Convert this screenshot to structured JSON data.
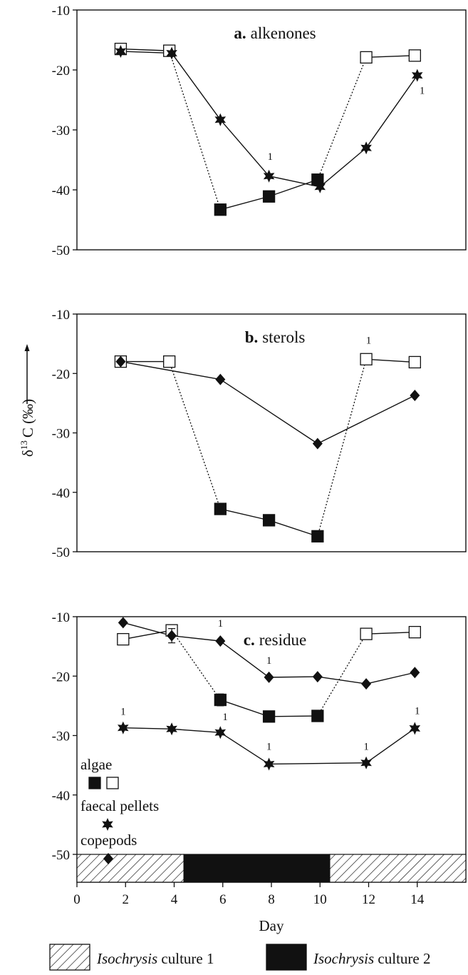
{
  "ylabel": {
    "prefix": "δ",
    "superscript": "13",
    "main": "C (‰)"
  },
  "xlabel": "Day",
  "bottom_legend": [
    {
      "pattern": "hatched",
      "italic": "Isochrysis",
      "rest": " culture 1"
    },
    {
      "pattern": "solid",
      "italic": "Isochrysis",
      "rest": " culture 2"
    }
  ],
  "inset_legend": [
    {
      "symbol": "squares",
      "label": "algae"
    },
    {
      "symbol": "star",
      "label": "faecal pellets"
    },
    {
      "symbol": "diamond",
      "label": "copepods"
    }
  ],
  "chart_data": [
    {
      "type": "line",
      "panel_letter": "a.",
      "panel_title": "alkenones",
      "xlim": [
        0,
        16
      ],
      "ylim": [
        -50,
        -10
      ],
      "y_ticks": [
        -10,
        -20,
        -30,
        -40,
        -50
      ],
      "series": [
        {
          "name": "algae",
          "marker": "square",
          "points": [
            {
              "x": 1.8,
              "y": -16.5,
              "fill": "open"
            },
            {
              "x": 3.8,
              "y": -16.8,
              "fill": "open"
            },
            {
              "x": 5.9,
              "y": -43.3,
              "fill": "filled"
            },
            {
              "x": 7.9,
              "y": -41.1,
              "fill": "filled"
            },
            {
              "x": 9.9,
              "y": -38.3,
              "fill": "filled"
            },
            {
              "x": 11.9,
              "y": -17.9,
              "fill": "open"
            },
            {
              "x": 13.9,
              "y": -17.6,
              "fill": "open"
            }
          ],
          "links": [
            {
              "from": 0,
              "to": 1,
              "style": "solid"
            },
            {
              "from": 1,
              "to": 2,
              "style": "dotted"
            },
            {
              "from": 2,
              "to": 3,
              "style": "solid"
            },
            {
              "from": 3,
              "to": 4,
              "style": "solid"
            },
            {
              "from": 4,
              "to": 5,
              "style": "dotted"
            },
            {
              "from": 5,
              "to": 6,
              "style": "solid"
            }
          ]
        },
        {
          "name": "faecal pellets",
          "marker": "star",
          "points": [
            {
              "x": 1.8,
              "y": -16.9
            },
            {
              "x": 3.9,
              "y": -17.2
            },
            {
              "x": 5.9,
              "y": -28.3
            },
            {
              "x": 7.9,
              "y": -37.7
            },
            {
              "x": 10.0,
              "y": -39.5
            },
            {
              "x": 11.9,
              "y": -33.0
            },
            {
              "x": 14.0,
              "y": -20.9
            }
          ],
          "links": [
            {
              "from": 0,
              "to": 1,
              "style": "solid"
            },
            {
              "from": 1,
              "to": 2,
              "style": "solid"
            },
            {
              "from": 2,
              "to": 3,
              "style": "solid"
            },
            {
              "from": 3,
              "to": 4,
              "style": "solid"
            },
            {
              "from": 4,
              "to": 5,
              "style": "solid"
            },
            {
              "from": 5,
              "to": 6,
              "style": "solid"
            }
          ]
        }
      ],
      "annotations": [
        {
          "text": "1",
          "x": 7.95,
          "y": -35.0
        },
        {
          "text": "1",
          "x": 14.2,
          "y": -24.0
        }
      ]
    },
    {
      "type": "line",
      "panel_letter": "b.",
      "panel_title": "sterols",
      "xlim": [
        0,
        16
      ],
      "ylim": [
        -50,
        -10
      ],
      "y_ticks": [
        -10,
        -20,
        -30,
        -40,
        -50
      ],
      "series": [
        {
          "name": "algae",
          "marker": "square",
          "points": [
            {
              "x": 1.8,
              "y": -18.0,
              "fill": "open"
            },
            {
              "x": 3.8,
              "y": -18.0,
              "fill": "open"
            },
            {
              "x": 5.9,
              "y": -42.8,
              "fill": "filled"
            },
            {
              "x": 7.9,
              "y": -44.7,
              "fill": "filled"
            },
            {
              "x": 9.9,
              "y": -47.4,
              "fill": "filled"
            },
            {
              "x": 11.9,
              "y": -17.6,
              "fill": "open"
            },
            {
              "x": 13.9,
              "y": -18.1,
              "fill": "open"
            }
          ],
          "links": [
            {
              "from": 0,
              "to": 1,
              "style": "solid"
            },
            {
              "from": 1,
              "to": 2,
              "style": "dotted"
            },
            {
              "from": 2,
              "to": 3,
              "style": "solid"
            },
            {
              "from": 3,
              "to": 4,
              "style": "solid"
            },
            {
              "from": 4,
              "to": 5,
              "style": "dotted"
            },
            {
              "from": 5,
              "to": 6,
              "style": "solid"
            }
          ]
        },
        {
          "name": "copepods",
          "marker": "diamond",
          "points": [
            {
              "x": 1.8,
              "y": -18.0
            },
            {
              "x": 5.9,
              "y": -21.0
            },
            {
              "x": 9.9,
              "y": -31.8
            },
            {
              "x": 13.9,
              "y": -23.7
            }
          ],
          "links": [
            {
              "from": 0,
              "to": 1,
              "style": "solid"
            },
            {
              "from": 1,
              "to": 2,
              "style": "solid"
            },
            {
              "from": 2,
              "to": 3,
              "style": "solid"
            }
          ]
        }
      ],
      "annotations": [
        {
          "text": "1",
          "x": 12.0,
          "y": -15.0
        }
      ]
    },
    {
      "type": "line",
      "panel_letter": "c.",
      "panel_title": "residue",
      "xlim": [
        0,
        16
      ],
      "ylim": [
        -50,
        -10
      ],
      "y_ticks": [
        -10,
        -20,
        -30,
        -40,
        -50
      ],
      "x_ticks": [
        0,
        2,
        4,
        6,
        8,
        10,
        12,
        14
      ],
      "series": [
        {
          "name": "algae",
          "marker": "square",
          "points": [
            {
              "x": 1.9,
              "y": -13.8,
              "fill": "open"
            },
            {
              "x": 3.9,
              "y": -12.3,
              "fill": "open"
            },
            {
              "x": 5.9,
              "y": -24.0,
              "fill": "filled",
              "error": 1.0
            },
            {
              "x": 7.9,
              "y": -26.8,
              "fill": "filled"
            },
            {
              "x": 9.9,
              "y": -26.7,
              "fill": "filled"
            },
            {
              "x": 11.9,
              "y": -12.9,
              "fill": "open"
            },
            {
              "x": 13.9,
              "y": -12.6,
              "fill": "open"
            }
          ],
          "links": [
            {
              "from": 0,
              "to": 1,
              "style": "solid"
            },
            {
              "from": 1,
              "to": 2,
              "style": "dotted"
            },
            {
              "from": 2,
              "to": 3,
              "style": "solid"
            },
            {
              "from": 3,
              "to": 4,
              "style": "solid"
            },
            {
              "from": 4,
              "to": 5,
              "style": "dotted"
            },
            {
              "from": 5,
              "to": 6,
              "style": "solid"
            }
          ]
        },
        {
          "name": "copepods",
          "marker": "diamond",
          "points": [
            {
              "x": 1.9,
              "y": -11.0
            },
            {
              "x": 3.9,
              "y": -13.2,
              "error": 1.2
            },
            {
              "x": 5.9,
              "y": -14.1
            },
            {
              "x": 7.9,
              "y": -20.2
            },
            {
              "x": 9.9,
              "y": -20.1
            },
            {
              "x": 11.9,
              "y": -21.3
            },
            {
              "x": 13.9,
              "y": -19.4
            }
          ],
          "links": [
            {
              "from": 0,
              "to": 1,
              "style": "solid"
            },
            {
              "from": 1,
              "to": 2,
              "style": "solid"
            },
            {
              "from": 2,
              "to": 3,
              "style": "solid"
            },
            {
              "from": 3,
              "to": 4,
              "style": "solid"
            },
            {
              "from": 4,
              "to": 5,
              "style": "solid"
            },
            {
              "from": 5,
              "to": 6,
              "style": "solid"
            }
          ]
        },
        {
          "name": "faecal pellets",
          "marker": "star",
          "points": [
            {
              "x": 1.9,
              "y": -28.7
            },
            {
              "x": 3.9,
              "y": -28.9
            },
            {
              "x": 5.9,
              "y": -29.5
            },
            {
              "x": 7.9,
              "y": -34.8
            },
            {
              "x": 11.9,
              "y": -34.6
            },
            {
              "x": 13.9,
              "y": -28.8
            }
          ],
          "links": [
            {
              "from": 0,
              "to": 1,
              "style": "solid"
            },
            {
              "from": 1,
              "to": 2,
              "style": "solid"
            },
            {
              "from": 2,
              "to": 3,
              "style": "solid"
            },
            {
              "from": 3,
              "to": 4,
              "style": "solid"
            },
            {
              "from": 4,
              "to": 5,
              "style": "solid"
            }
          ]
        }
      ],
      "annotations": [
        {
          "text": "1",
          "x": 1.9,
          "y": -26.5
        },
        {
          "text": "1",
          "x": 6.1,
          "y": -27.4
        },
        {
          "text": "1",
          "x": 7.9,
          "y": -32.4
        },
        {
          "text": "1",
          "x": 11.9,
          "y": -32.4
        },
        {
          "text": "1",
          "x": 14.0,
          "y": -26.4
        },
        {
          "text": "1",
          "x": 5.9,
          "y": -11.7
        },
        {
          "text": "1",
          "x": 7.9,
          "y": -17.9
        }
      ],
      "culture_bar": [
        {
          "from": 0,
          "to": 4.4,
          "pattern": "hatched"
        },
        {
          "from": 4.4,
          "to": 10.4,
          "pattern": "solid"
        },
        {
          "from": 10.4,
          "to": 16,
          "pattern": "hatched"
        }
      ]
    }
  ]
}
